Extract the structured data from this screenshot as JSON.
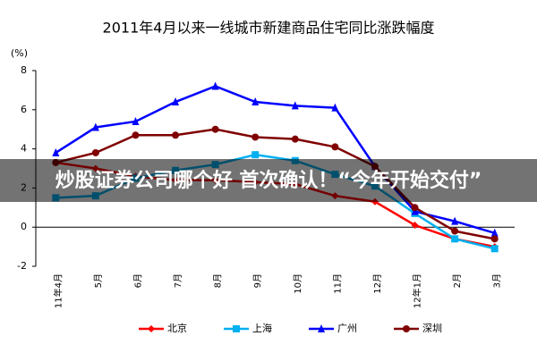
{
  "chart_data": {
    "type": "line",
    "title": "2011年4月以来一线城市新建商品住宅同比涨跌幅度",
    "y_label": "(%)",
    "banner": "炒股证券公司哪个好 首次确认！“今年开始交付”",
    "categories": [
      "11年4月",
      "5月",
      "6月",
      "7月",
      "8月",
      "9月",
      "10月",
      "11月",
      "12月",
      "12年1月",
      "2月",
      "3月"
    ],
    "ylim": [
      -2,
      8
    ],
    "yticks": [
      -2,
      0,
      2,
      4,
      6,
      8
    ],
    "series": [
      {
        "name": "北京",
        "color": "#ff0000",
        "marker": "diamond",
        "values": [
          3.3,
          3.0,
          2.6,
          2.4,
          2.4,
          2.3,
          2.2,
          1.6,
          1.3,
          0.1,
          -0.6,
          -1.0
        ]
      },
      {
        "name": "上海",
        "color": "#00b0f0",
        "marker": "square",
        "values": [
          1.5,
          1.6,
          2.5,
          2.9,
          3.2,
          3.7,
          3.4,
          2.7,
          2.1,
          0.7,
          -0.6,
          -1.1
        ]
      },
      {
        "name": "广州",
        "color": "#0000ff",
        "marker": "triangle",
        "values": [
          3.8,
          5.1,
          5.4,
          6.4,
          7.2,
          6.4,
          6.2,
          6.1,
          3.1,
          0.8,
          0.3,
          -0.3
        ]
      },
      {
        "name": "深圳",
        "color": "#800000",
        "marker": "circle",
        "values": [
          3.3,
          3.8,
          4.7,
          4.7,
          5.0,
          4.6,
          4.5,
          4.1,
          3.1,
          1.0,
          -0.2,
          -0.6
        ]
      }
    ]
  }
}
